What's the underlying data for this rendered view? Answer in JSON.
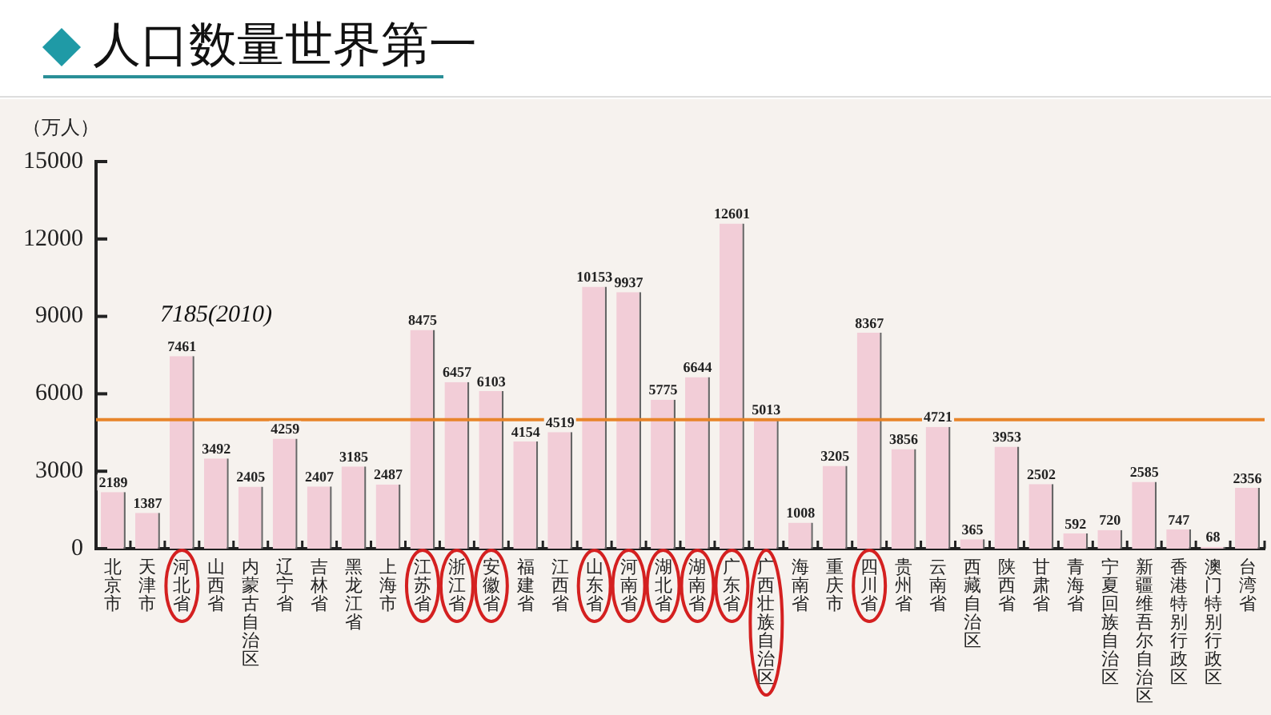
{
  "chart_data": {
    "type": "bar",
    "title": "人口数量世界第一",
    "ylabel": "（万人）",
    "categories": [
      "北京市",
      "天津市",
      "河北省",
      "山西省",
      "内蒙古自治区",
      "辽宁省",
      "吉林省",
      "黑龙江省",
      "上海市",
      "江苏省",
      "浙江省",
      "安徽省",
      "福建省",
      "江西省",
      "山东省",
      "河南省",
      "湖北省",
      "湖南省",
      "广东省",
      "广西壮族自治区",
      "海南省",
      "重庆市",
      "四川省",
      "贵州省",
      "云南省",
      "西藏自治区",
      "陕西省",
      "甘肃省",
      "青海省",
      "宁夏回族自治区",
      "新疆维吾尔自治区",
      "香港特别行政区",
      "澳门特别行政区",
      "台湾省"
    ],
    "values": [
      2189,
      1387,
      7461,
      3492,
      2405,
      4259,
      2407,
      3185,
      2487,
      8475,
      6457,
      6103,
      4154,
      4519,
      10153,
      9937,
      5775,
      6644,
      12601,
      5013,
      1008,
      3205,
      8367,
      3856,
      4721,
      365,
      3953,
      2502,
      592,
      720,
      2585,
      747,
      68,
      2356
    ],
    "color": "#f2cdd7",
    "ylim": [
      0,
      15000
    ],
    "yticks": [
      0,
      3000,
      6000,
      9000,
      12000,
      15000
    ],
    "grid": false,
    "legend": false,
    "data_labels": true,
    "ref_lines": [
      {
        "axis": "y",
        "value": 5000,
        "color": "#e8852a"
      }
    ],
    "annotations": [
      "7185(2010)"
    ]
  }
}
